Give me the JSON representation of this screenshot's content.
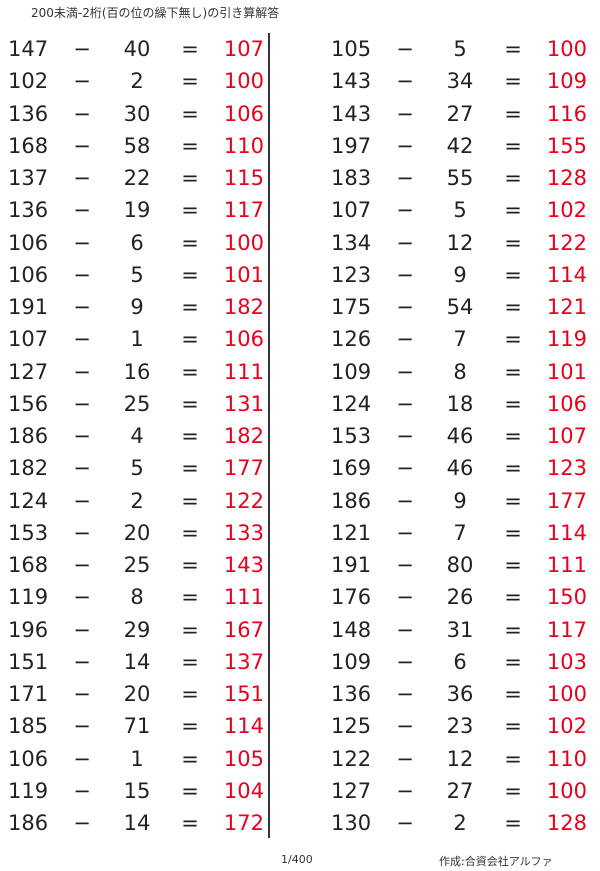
{
  "title": "200未満-2桁(百の位の繰下無し)の引き算解答",
  "operator": "−",
  "equals": "=",
  "answer_color": "#e8001c",
  "left_problems": [
    {
      "a": "147",
      "b": "40",
      "answer": "107"
    },
    {
      "a": "102",
      "b": "2",
      "answer": "100"
    },
    {
      "a": "136",
      "b": "30",
      "answer": "106"
    },
    {
      "a": "168",
      "b": "58",
      "answer": "110"
    },
    {
      "a": "137",
      "b": "22",
      "answer": "115"
    },
    {
      "a": "136",
      "b": "19",
      "answer": "117"
    },
    {
      "a": "106",
      "b": "6",
      "answer": "100"
    },
    {
      "a": "106",
      "b": "5",
      "answer": "101"
    },
    {
      "a": "191",
      "b": "9",
      "answer": "182"
    },
    {
      "a": "107",
      "b": "1",
      "answer": "106"
    },
    {
      "a": "127",
      "b": "16",
      "answer": "111"
    },
    {
      "a": "156",
      "b": "25",
      "answer": "131"
    },
    {
      "a": "186",
      "b": "4",
      "answer": "182"
    },
    {
      "a": "182",
      "b": "5",
      "answer": "177"
    },
    {
      "a": "124",
      "b": "2",
      "answer": "122"
    },
    {
      "a": "153",
      "b": "20",
      "answer": "133"
    },
    {
      "a": "168",
      "b": "25",
      "answer": "143"
    },
    {
      "a": "119",
      "b": "8",
      "answer": "111"
    },
    {
      "a": "196",
      "b": "29",
      "answer": "167"
    },
    {
      "a": "151",
      "b": "14",
      "answer": "137"
    },
    {
      "a": "171",
      "b": "20",
      "answer": "151"
    },
    {
      "a": "185",
      "b": "71",
      "answer": "114"
    },
    {
      "a": "106",
      "b": "1",
      "answer": "105"
    },
    {
      "a": "119",
      "b": "15",
      "answer": "104"
    },
    {
      "a": "186",
      "b": "14",
      "answer": "172"
    }
  ],
  "right_problems": [
    {
      "a": "105",
      "b": "5",
      "answer": "100"
    },
    {
      "a": "143",
      "b": "34",
      "answer": "109"
    },
    {
      "a": "143",
      "b": "27",
      "answer": "116"
    },
    {
      "a": "197",
      "b": "42",
      "answer": "155"
    },
    {
      "a": "183",
      "b": "55",
      "answer": "128"
    },
    {
      "a": "107",
      "b": "5",
      "answer": "102"
    },
    {
      "a": "134",
      "b": "12",
      "answer": "122"
    },
    {
      "a": "123",
      "b": "9",
      "answer": "114"
    },
    {
      "a": "175",
      "b": "54",
      "answer": "121"
    },
    {
      "a": "126",
      "b": "7",
      "answer": "119"
    },
    {
      "a": "109",
      "b": "8",
      "answer": "101"
    },
    {
      "a": "124",
      "b": "18",
      "answer": "106"
    },
    {
      "a": "153",
      "b": "46",
      "answer": "107"
    },
    {
      "a": "169",
      "b": "46",
      "answer": "123"
    },
    {
      "a": "186",
      "b": "9",
      "answer": "177"
    },
    {
      "a": "121",
      "b": "7",
      "answer": "114"
    },
    {
      "a": "191",
      "b": "80",
      "answer": "111"
    },
    {
      "a": "176",
      "b": "26",
      "answer": "150"
    },
    {
      "a": "148",
      "b": "31",
      "answer": "117"
    },
    {
      "a": "109",
      "b": "6",
      "answer": "103"
    },
    {
      "a": "136",
      "b": "36",
      "answer": "100"
    },
    {
      "a": "125",
      "b": "23",
      "answer": "102"
    },
    {
      "a": "122",
      "b": "12",
      "answer": "110"
    },
    {
      "a": "127",
      "b": "27",
      "answer": "100"
    },
    {
      "a": "130",
      "b": "2",
      "answer": "128"
    }
  ],
  "footer": {
    "page": "1/400",
    "credit": "作成:合資会社アルファ"
  }
}
